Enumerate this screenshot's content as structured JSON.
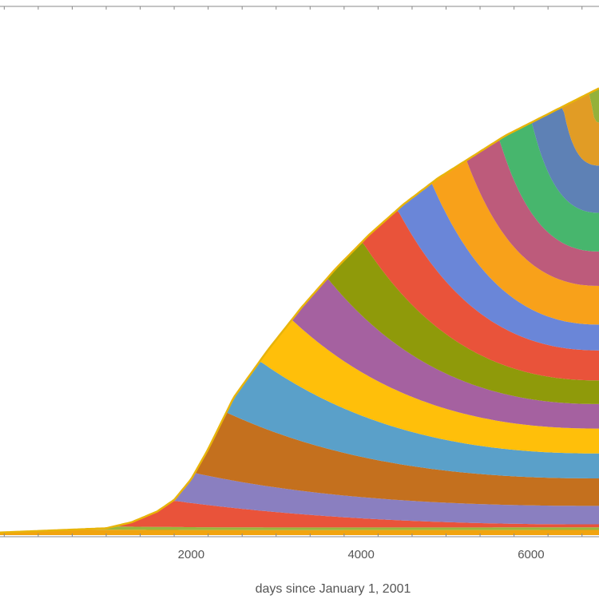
{
  "chart_data": {
    "type": "area",
    "stacked": true,
    "xlabel": "days since January 1, 2001",
    "ylabel": "",
    "xlim": [
      -250,
      6800
    ],
    "x_ticks": [
      {
        "value": 2000,
        "label": "2000"
      },
      {
        "value": 4000,
        "label": "4000"
      },
      {
        "value": 6000,
        "label": "6000"
      }
    ],
    "grid": false,
    "legend": "none",
    "outline_color": "#E8B40A",
    "colors": [
      "#F1A40F",
      "#9AB63D",
      "#E9533A",
      "#8A7FC0",
      "#C4701E",
      "#5AA0C9",
      "#FFBF0A",
      "#A561A0",
      "#8F9A0A",
      "#E9533A",
      "#6A86D8",
      "#F8A11A",
      "#BD5B7B",
      "#47B66D",
      "#5E81B5",
      "#E19C25",
      "#94B13A"
    ],
    "outline": [
      [
        -250,
        0.006
      ],
      [
        1000,
        0.016
      ],
      [
        1300,
        0.03
      ],
      [
        1600,
        0.055
      ],
      [
        1800,
        0.082
      ],
      [
        2000,
        0.13
      ],
      [
        2200,
        0.2
      ],
      [
        2500,
        0.32
      ],
      [
        2900,
        0.43
      ],
      [
        3300,
        0.53
      ],
      [
        3700,
        0.62
      ],
      [
        4100,
        0.7
      ],
      [
        4500,
        0.77
      ],
      [
        4900,
        0.83
      ],
      [
        5300,
        0.88
      ],
      [
        5700,
        0.93
      ],
      [
        6100,
        0.97
      ],
      [
        6400,
        1.0
      ],
      [
        6800,
        1.04
      ]
    ],
    "series": [
      {
        "start": -250,
        "bottom_end": 0.006
      },
      {
        "start": 300,
        "bottom_end": 0.012
      },
      {
        "start": 1000,
        "bottom_end": 0.018
      },
      {
        "start": 1750,
        "bottom_end": 0.025
      },
      {
        "start": 2000,
        "bottom_end": 0.068
      },
      {
        "start": 2350,
        "bottom_end": 0.132
      },
      {
        "start": 2700,
        "bottom_end": 0.19
      },
      {
        "start": 3050,
        "bottom_end": 0.248
      },
      {
        "start": 3450,
        "bottom_end": 0.305
      },
      {
        "start": 3850,
        "bottom_end": 0.36
      },
      {
        "start": 4250,
        "bottom_end": 0.43
      },
      {
        "start": 4650,
        "bottom_end": 0.49
      },
      {
        "start": 5050,
        "bottom_end": 0.58
      },
      {
        "start": 5450,
        "bottom_end": 0.66
      },
      {
        "start": 5850,
        "bottom_end": 0.75
      },
      {
        "start": 6250,
        "bottom_end": 0.86
      },
      {
        "start": 6650,
        "bottom_end": 0.96
      }
    ]
  }
}
